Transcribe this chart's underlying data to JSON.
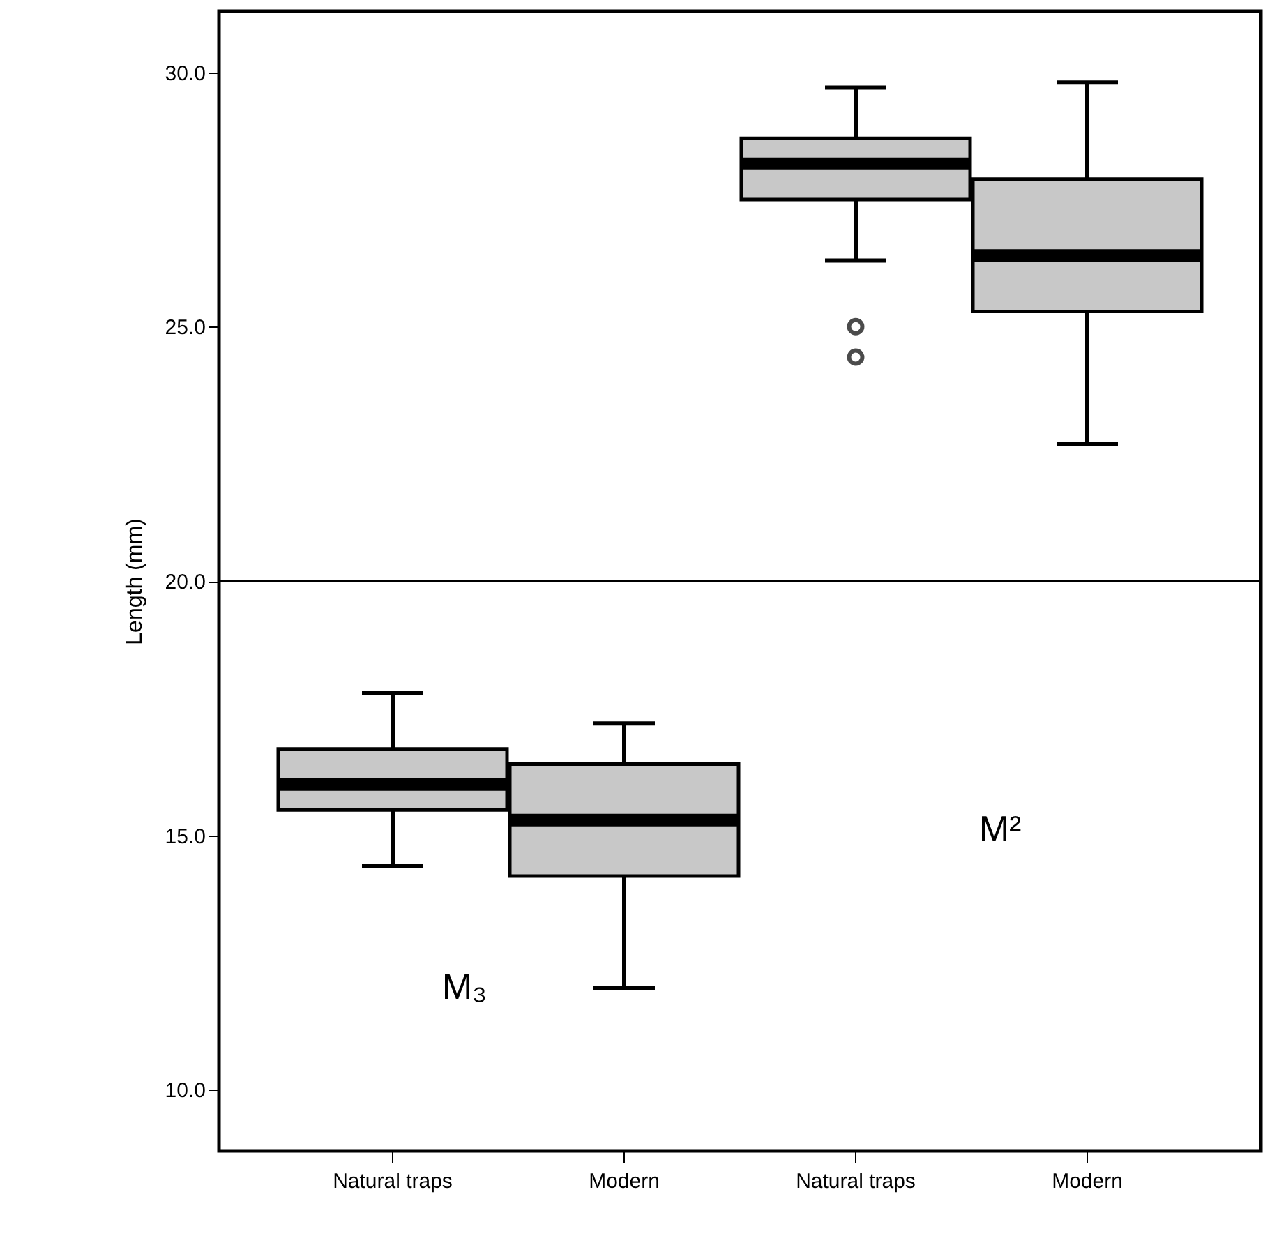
{
  "chart_data": {
    "type": "box",
    "ylabel": "Length (mm)",
    "categories": [
      "Natural traps",
      "Modern",
      "Natural traps",
      "Modern"
    ],
    "color": "#c8c8c8",
    "boxes": [
      {
        "low": 14.4,
        "q1": 15.5,
        "median": 16.0,
        "q3": 16.7,
        "high": 17.8
      },
      {
        "low": 12.0,
        "q1": 14.2,
        "median": 15.3,
        "q3": 16.4,
        "high": 17.2
      },
      {
        "low": 26.3,
        "q1": 27.5,
        "median": 28.2,
        "q3": 28.7,
        "high": 29.7,
        "outliers": [
          25.0,
          24.4
        ]
      },
      {
        "low": 22.7,
        "q1": 25.3,
        "median": 26.4,
        "q3": 27.9,
        "high": 29.8
      }
    ],
    "ylim": [
      8.8,
      31.2
    ],
    "yticks": [
      {
        "value": 10,
        "label": "10.0"
      },
      {
        "value": 15,
        "label": "15.0"
      },
      {
        "value": 20,
        "label": "20.0"
      },
      {
        "value": 25,
        "label": "25.0"
      },
      {
        "value": 30,
        "label": "30.0"
      }
    ],
    "ref_lines": [
      {
        "axis": "y",
        "value": 20,
        "color": "#000000"
      }
    ],
    "annotations": [
      "M²",
      "M₃"
    ],
    "grid": false
  }
}
